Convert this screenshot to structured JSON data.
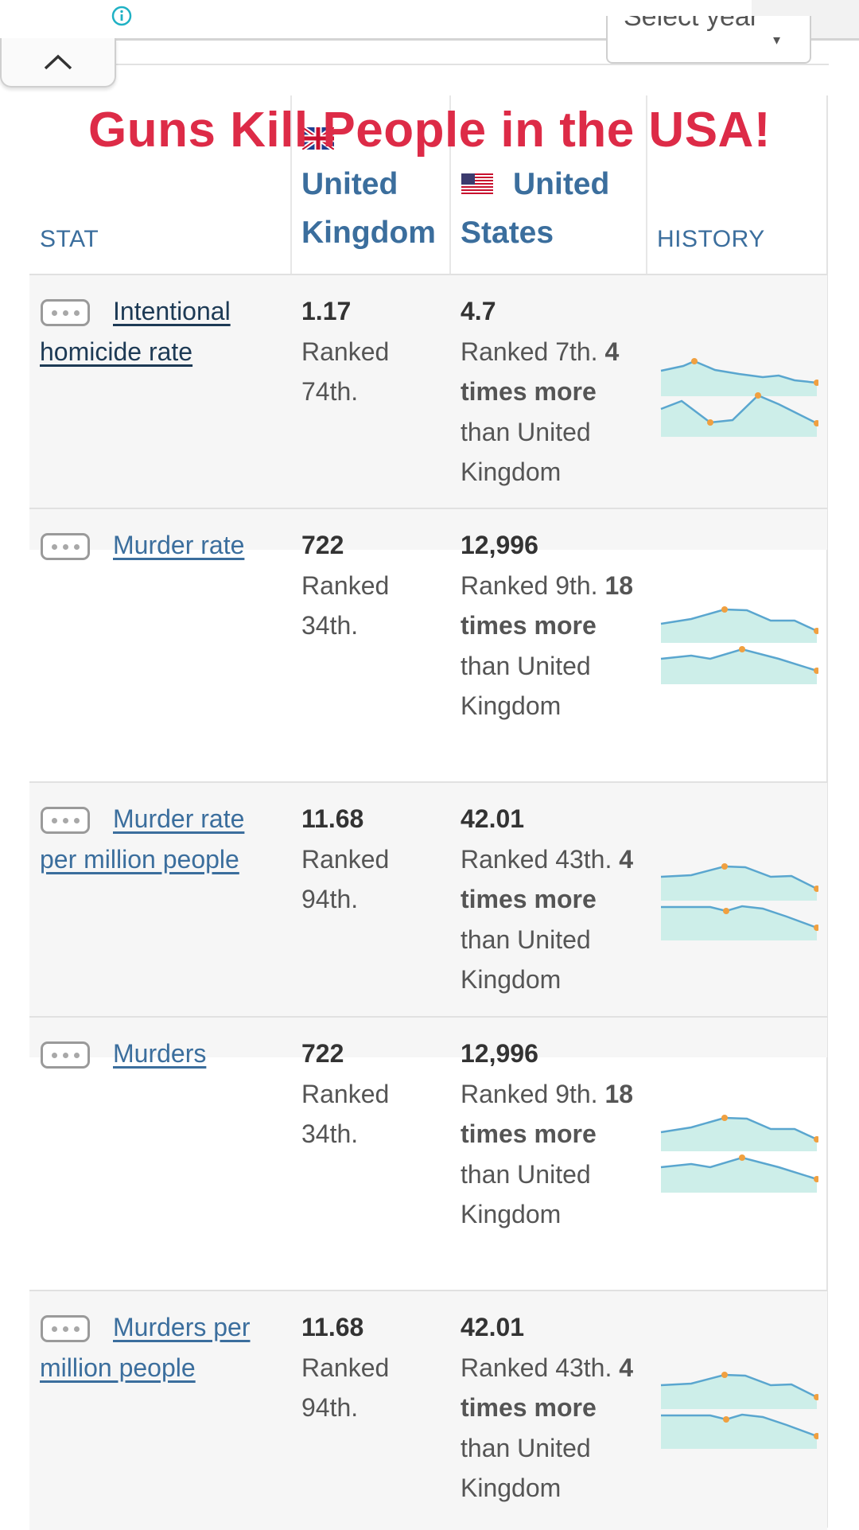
{
  "banner": {
    "text": "Guns Kill People in the USA!",
    "color": "#dd2b47"
  },
  "toolbar": {
    "info_icon": "info-circle-icon",
    "collapse_icon": "chevron-up-icon"
  },
  "year_select": {
    "label": "Select year",
    "caret": "▾"
  },
  "table": {
    "stat_header": "STAT",
    "history_header": "HISTORY",
    "countries": [
      {
        "name_line1": "United",
        "name_line2": "Kingdom",
        "flag_icon": "uk-flag-icon"
      },
      {
        "name_line1": "United",
        "name_line2": "States",
        "flag_icon": "us-flag-icon"
      }
    ],
    "rows": [
      {
        "stat": "Intentional homicide rate",
        "uk_value": "1.17",
        "uk_rank": "Ranked 74th.",
        "us_value": "4.7",
        "us_rank": "Ranked 7th.",
        "us_compare": "4 times more",
        "us_compare_tail": "than United Kingdom"
      },
      {
        "stat": "Murder rate",
        "uk_value": "722",
        "uk_rank": "Ranked 34th.",
        "us_value": "12,996",
        "us_rank": "Ranked 9th.",
        "us_compare": "18 times more",
        "us_compare_tail": "than United Kingdom"
      },
      {
        "stat": "Murder rate per million people",
        "uk_value": "11.68",
        "uk_rank": "Ranked 94th.",
        "us_value": "42.01",
        "us_rank": "Ranked 43th.",
        "us_compare": "4 times more",
        "us_compare_tail": "than United Kingdom"
      },
      {
        "stat": "Murders",
        "uk_value": "722",
        "uk_rank": "Ranked 34th.",
        "us_value": "12,996",
        "us_rank": "Ranked 9th.",
        "us_compare": "18 times more",
        "us_compare_tail": "than United Kingdom"
      },
      {
        "stat": "Murders per million people",
        "uk_value": "11.68",
        "uk_rank": "Ranked 94th.",
        "us_value": "42.01",
        "us_rank": "Ranked 43th.",
        "us_compare": "4 times more",
        "us_compare_tail": "than United Kingdom"
      }
    ]
  },
  "colors": {
    "link": "#3b6e9d",
    "spark_line": "#5aa6cf",
    "spark_fill": "#cdeee9",
    "spark_dot": "#f0a040"
  }
}
